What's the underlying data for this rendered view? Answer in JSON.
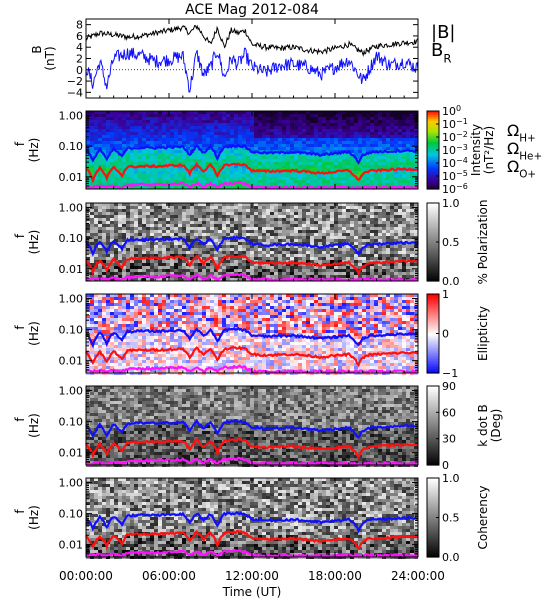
{
  "chart_data": {
    "type": "line",
    "title": "ACE Mag 2012-084",
    "xlabel": "Time (UT)",
    "x_ticks": [
      "00:00:00",
      "06:00:00",
      "12:00:00",
      "18:00:00",
      "24:00:00"
    ],
    "x_range_hours": [
      0,
      24
    ],
    "colors": {
      "black": "#000000",
      "blue": "#1010ff",
      "red": "#ff1010",
      "magenta": "#ff10ff"
    },
    "field_panel": {
      "ylabel": "B",
      "yunit": "(nT)",
      "ylim": [
        -5,
        9
      ],
      "yticks": [
        "8",
        "6",
        "4",
        "2",
        "0",
        "−2",
        "−4"
      ],
      "yvals": [
        8,
        6,
        4,
        2,
        0,
        -2,
        -4
      ],
      "series": [
        {
          "name": "|B|",
          "color": "#000000",
          "t": [
            0,
            1,
            2,
            3,
            4,
            5,
            6,
            7,
            7.5,
            8,
            8.5,
            9,
            9.5,
            10,
            10.5,
            11,
            11.5,
            12,
            13,
            14,
            15,
            16,
            17,
            18,
            19,
            20,
            21,
            22,
            23,
            24
          ],
          "v": [
            5.5,
            6.5,
            6.2,
            5.8,
            6.0,
            6.5,
            7.0,
            7.5,
            6.5,
            7.8,
            6.0,
            4.5,
            7.5,
            4.0,
            7.0,
            6.5,
            7.0,
            4.5,
            4.0,
            3.8,
            4.0,
            3.5,
            3.2,
            3.8,
            4.5,
            3.0,
            4.2,
            4.5,
            4.8,
            5.0
          ]
        },
        {
          "name": "B_R",
          "color": "#1010ff",
          "t": [
            0,
            0.5,
            1,
            1.5,
            2,
            3,
            4,
            5,
            6,
            7,
            7.5,
            8,
            8.5,
            9,
            9.5,
            10,
            10.5,
            11,
            11.5,
            12,
            13,
            14,
            15,
            16,
            17,
            18,
            19,
            20,
            21,
            22,
            23,
            24
          ],
          "v": [
            0.5,
            -2.5,
            1.5,
            -3.0,
            2.0,
            3.0,
            2.5,
            1.5,
            1.8,
            2.5,
            -3.5,
            3.0,
            -1.0,
            0.5,
            3.5,
            -1.5,
            2.0,
            1.0,
            2.8,
            0.5,
            -0.5,
            0.8,
            1.0,
            0.5,
            -0.8,
            0.5,
            1.8,
            -2.0,
            2.5,
            0.8,
            1.5,
            0.2
          ]
        }
      ]
    },
    "freq_axis": {
      "ylabel": "f",
      "yunit": "(Hz)",
      "ylim": [
        0.004,
        1.4
      ],
      "log": true,
      "yticks": [
        "1.00",
        "0.10",
        "0.01"
      ],
      "yvals": [
        1.0,
        0.1,
        0.01
      ]
    },
    "gyro_lines": [
      {
        "name": "Ω_H+",
        "color": "#1010ff",
        "t": [
          0,
          0.5,
          1,
          1.5,
          2,
          2.6,
          3,
          4,
          5,
          6,
          7,
          7.5,
          8,
          8.5,
          9,
          9.5,
          10,
          10.5,
          11,
          11.5,
          12,
          13,
          14,
          15,
          16,
          17,
          18,
          19,
          19.7,
          20,
          20.5,
          21,
          22,
          23,
          24
        ],
        "v": [
          0.075,
          0.032,
          0.078,
          0.035,
          0.08,
          0.045,
          0.085,
          0.09,
          0.088,
          0.092,
          0.095,
          0.05,
          0.1,
          0.06,
          0.095,
          0.04,
          0.095,
          0.1,
          0.105,
          0.095,
          0.065,
          0.06,
          0.062,
          0.064,
          0.058,
          0.052,
          0.058,
          0.065,
          0.03,
          0.05,
          0.062,
          0.065,
          0.068,
          0.072,
          0.07
        ]
      },
      {
        "name": "Ω_He+",
        "color": "#ff1010",
        "t": [
          0,
          0.5,
          1,
          1.5,
          2,
          2.6,
          3,
          4,
          5,
          6,
          7,
          7.5,
          8,
          8.5,
          9,
          9.5,
          10,
          10.5,
          11,
          11.5,
          12,
          13,
          14,
          15,
          16,
          17,
          18,
          19,
          19.7,
          20,
          20.5,
          21,
          22,
          23,
          24
        ],
        "v": [
          0.019,
          0.008,
          0.019,
          0.009,
          0.02,
          0.011,
          0.021,
          0.022,
          0.022,
          0.023,
          0.024,
          0.013,
          0.025,
          0.015,
          0.024,
          0.01,
          0.024,
          0.025,
          0.026,
          0.024,
          0.016,
          0.015,
          0.0155,
          0.016,
          0.0145,
          0.013,
          0.0145,
          0.016,
          0.0075,
          0.0125,
          0.0155,
          0.016,
          0.017,
          0.018,
          0.0175
        ]
      },
      {
        "name": "Ω_O+",
        "color": "#ff10ff",
        "t": [
          0,
          0.5,
          1,
          1.5,
          2,
          2.6,
          3,
          4,
          5,
          6,
          7,
          7.5,
          8,
          8.5,
          9,
          9.5,
          10,
          10.5,
          11,
          11.5,
          12,
          13,
          14,
          15,
          16,
          17,
          18,
          19,
          19.7,
          20,
          20.5,
          21,
          22,
          23,
          24
        ],
        "v": [
          0.0047,
          0.0045,
          0.0049,
          0.0045,
          0.005,
          0.0045,
          0.0053,
          0.0056,
          0.0055,
          0.0058,
          0.006,
          0.0045,
          0.0062,
          0.0045,
          0.006,
          0.0045,
          0.006,
          0.0062,
          0.0065,
          0.006,
          0.0045,
          0.0045,
          0.0045,
          0.0045,
          0.0045,
          0.0045,
          0.0045,
          0.0045,
          0.0045,
          0.0045,
          0.0045,
          0.0045,
          0.0045,
          0.0045,
          0.0045
        ]
      }
    ],
    "legends": {
      "field": [
        {
          "text": "|B|",
          "color": "#000000"
        },
        {
          "text": "B",
          "sub": "R",
          "color": "#1010ff"
        }
      ],
      "ions": [
        {
          "text": "Ω",
          "sub": "H+",
          "color": "#1010ff"
        },
        {
          "text": "Ω",
          "sub": "He+",
          "color": "#ff1010"
        },
        {
          "text": "Ω",
          "sub": "O+",
          "color": "#ff10ff"
        }
      ]
    },
    "spectral_panels": [
      {
        "key": "intensity",
        "type": "heatmap",
        "palette": "rainbow",
        "colorbar_ticks": [
          {
            "base": "10",
            "exp": "0"
          },
          {
            "base": "10",
            "exp": "−1"
          },
          {
            "base": "10",
            "exp": "−2"
          },
          {
            "base": "10",
            "exp": "−3"
          },
          {
            "base": "10",
            "exp": "−4"
          },
          {
            "base": "10",
            "exp": "−5"
          },
          {
            "base": "10",
            "exp": "−6"
          }
        ],
        "colorbar_label": "Intensity",
        "colorbar_unit": "(nT²/Hz)"
      },
      {
        "key": "polarization",
        "type": "heatmap",
        "palette": "gray",
        "colorbar_ticks": [
          {
            "base": "1.0"
          },
          {
            "base": "0.5"
          },
          {
            "base": "0.0"
          }
        ],
        "colorbar_label": "% Polarization"
      },
      {
        "key": "ellipticity",
        "type": "heatmap",
        "palette": "bwr",
        "colorbar_ticks": [
          {
            "base": "1"
          },
          {
            "base": "0"
          },
          {
            "base": "−1"
          }
        ],
        "colorbar_label": "Ellipticity"
      },
      {
        "key": "kdotb",
        "type": "heatmap",
        "palette": "gray",
        "colorbar_ticks": [
          {
            "base": "90"
          },
          {
            "base": "60"
          },
          {
            "base": "30"
          },
          {
            "base": "0"
          }
        ],
        "colorbar_label": "k dot B",
        "colorbar_unit": "(Deg)"
      },
      {
        "key": "coherency",
        "type": "heatmap",
        "palette": "gray",
        "colorbar_ticks": [
          {
            "base": "1.0"
          },
          {
            "base": "0.5"
          },
          {
            "base": "0.0"
          }
        ],
        "colorbar_label": "Coherency"
      }
    ]
  }
}
